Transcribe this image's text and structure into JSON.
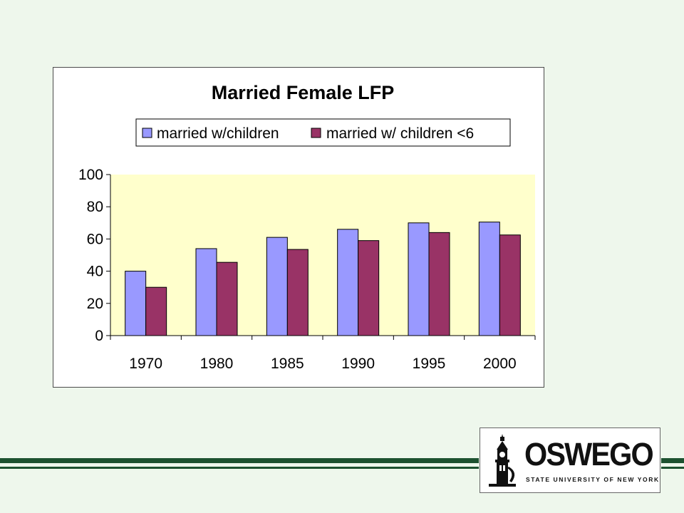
{
  "chart_data": {
    "type": "bar",
    "title": "Married Female LFP",
    "categories": [
      "1970",
      "1980",
      "1985",
      "1990",
      "1995",
      "2000"
    ],
    "series": [
      {
        "name": "married w/children",
        "values": [
          40,
          54,
          61,
          66,
          70,
          70.5
        ],
        "color": "#9999ff"
      },
      {
        "name": "married w/ children <6",
        "values": [
          30,
          45.5,
          53.5,
          59,
          64,
          62.5
        ],
        "color": "#993366"
      }
    ],
    "ylim": [
      0,
      100
    ],
    "yticks": [
      "0",
      "20",
      "40",
      "60",
      "80",
      "100"
    ],
    "plot_background": "#ffffcc",
    "grid": false,
    "legend_position": "top"
  },
  "logo": {
    "name": "OSWEGO",
    "subtitle": "STATE UNIVERSITY OF NEW YORK"
  },
  "colors": {
    "page_background": "#eef7ec",
    "stripe": "#1d5230"
  }
}
